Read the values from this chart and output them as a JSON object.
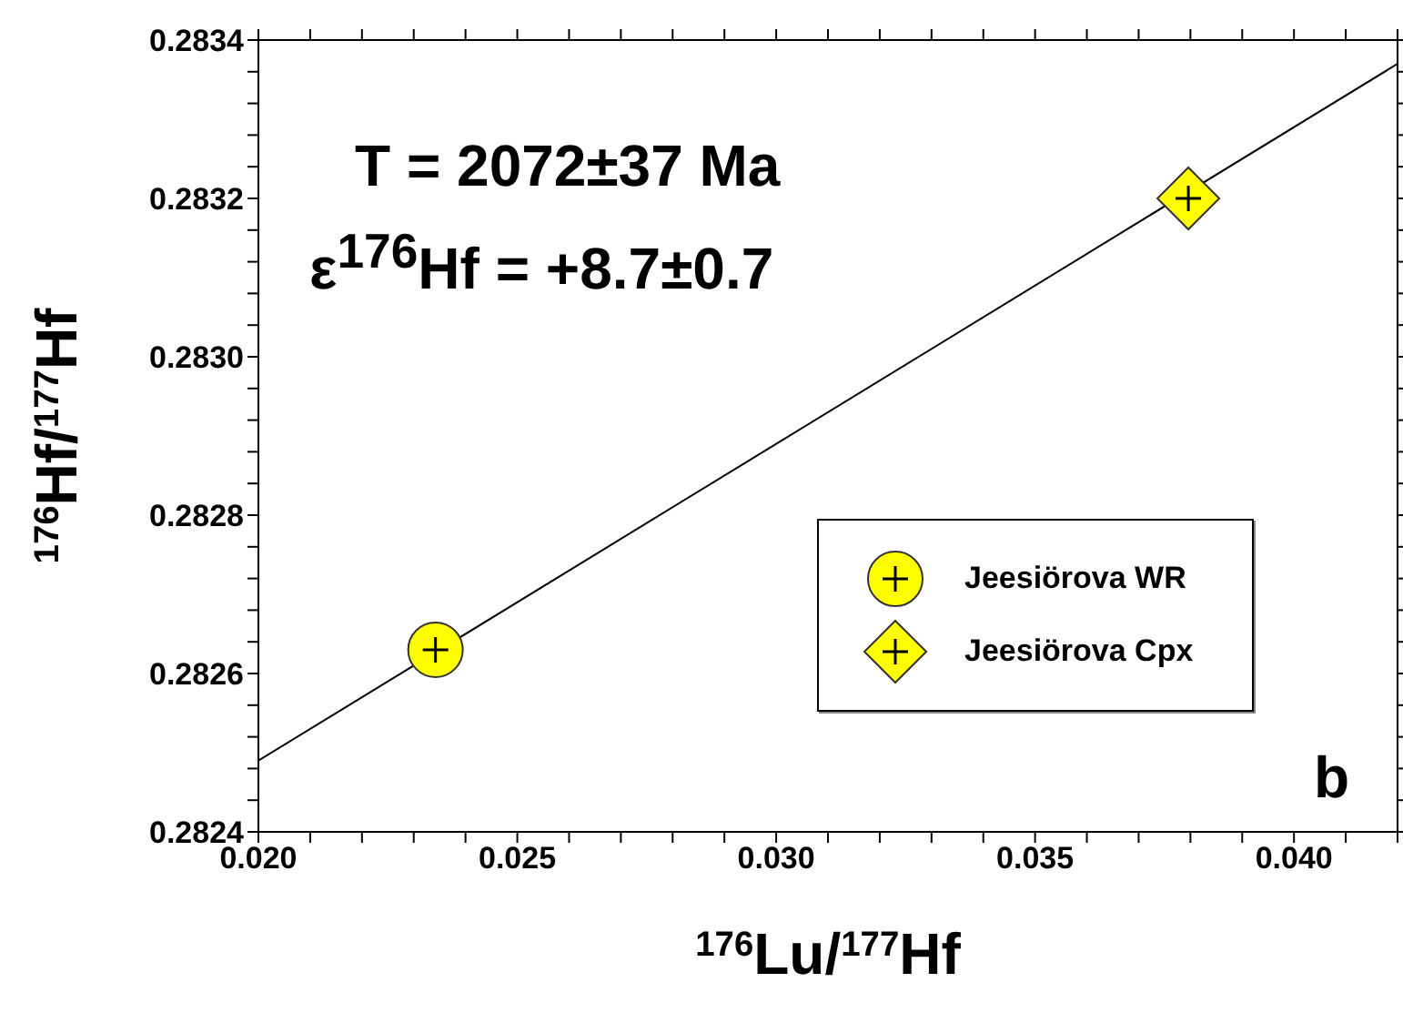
{
  "chart_data": {
    "type": "scatter",
    "xlabel": "$^{176}$Lu/$^{177}$Hf",
    "ylabel": "$^{176}$Hf/$^{177}$Hf",
    "annotations": [
      "T = 2072±37 Ma",
      "ε$^{176}$Hf = +8.7±0.7",
      "b"
    ],
    "series": [
      {
        "name": "Jeesiörova WR",
        "marker": "circle",
        "color": "#ffff00",
        "x": [
          0.02342
        ],
        "values": [
          0.28263
        ]
      },
      {
        "name": "Jeesiörova Cpx",
        "marker": "diamond",
        "color": "#ffff00",
        "x": [
          0.03796
        ],
        "values": [
          0.2832
        ]
      },
      {
        "type": "line",
        "color": "#000000",
        "marker": "none",
        "x": [
          0.02,
          0.042
        ],
        "values": [
          0.28249,
          0.28337
        ]
      }
    ],
    "xlim": [
      0.02,
      0.042
    ],
    "xticks": [
      {
        "value": 0.02,
        "label": "0.020"
      },
      {
        "value": 0.021,
        "label": null
      },
      {
        "value": 0.022,
        "label": null
      },
      {
        "value": 0.023,
        "label": null
      },
      {
        "value": 0.024,
        "label": null
      },
      {
        "value": 0.025,
        "label": "0.025"
      },
      {
        "value": 0.026,
        "label": null
      },
      {
        "value": 0.027,
        "label": null
      },
      {
        "value": 0.028,
        "label": null
      },
      {
        "value": 0.029,
        "label": null
      },
      {
        "value": 0.03,
        "label": "0.030"
      },
      {
        "value": 0.031,
        "label": null
      },
      {
        "value": 0.032,
        "label": null
      },
      {
        "value": 0.033,
        "label": null
      },
      {
        "value": 0.034,
        "label": null
      },
      {
        "value": 0.035,
        "label": "0.035"
      },
      {
        "value": 0.036,
        "label": null
      },
      {
        "value": 0.037,
        "label": null
      },
      {
        "value": 0.038,
        "label": null
      },
      {
        "value": 0.039,
        "label": null
      },
      {
        "value": 0.04,
        "label": "0.040"
      },
      {
        "value": 0.041,
        "label": null
      },
      {
        "value": 0.042,
        "label": null
      }
    ],
    "ylim": [
      0.2824,
      0.2834
    ],
    "yticks": [
      0.2824,
      {
        "value": 0.28244,
        "label": null
      },
      {
        "value": 0.28248,
        "label": null
      },
      {
        "value": 0.28252,
        "label": null
      },
      {
        "value": 0.28256,
        "label": null
      },
      0.2826,
      {
        "value": 0.28264,
        "label": null
      },
      {
        "value": 0.28268,
        "label": null
      },
      {
        "value": 0.28272,
        "label": null
      },
      {
        "value": 0.28276,
        "label": null
      },
      0.2828,
      {
        "value": 0.28284,
        "label": null
      },
      {
        "value": 0.28288,
        "label": null
      },
      {
        "value": 0.28292,
        "label": null
      },
      {
        "value": 0.28296,
        "label": null
      },
      {
        "value": 0.283,
        "label": "0.2830"
      },
      {
        "value": 0.28304,
        "label": null
      },
      {
        "value": 0.28308,
        "label": null
      },
      {
        "value": 0.28312,
        "label": null
      },
      {
        "value": 0.28316,
        "label": null
      },
      0.2832,
      {
        "value": 0.28324,
        "label": null
      },
      {
        "value": 0.28328,
        "label": null
      },
      {
        "value": 0.28332,
        "label": null
      },
      {
        "value": 0.28336,
        "label": null
      },
      0.2834
    ],
    "legend": "right"
  }
}
